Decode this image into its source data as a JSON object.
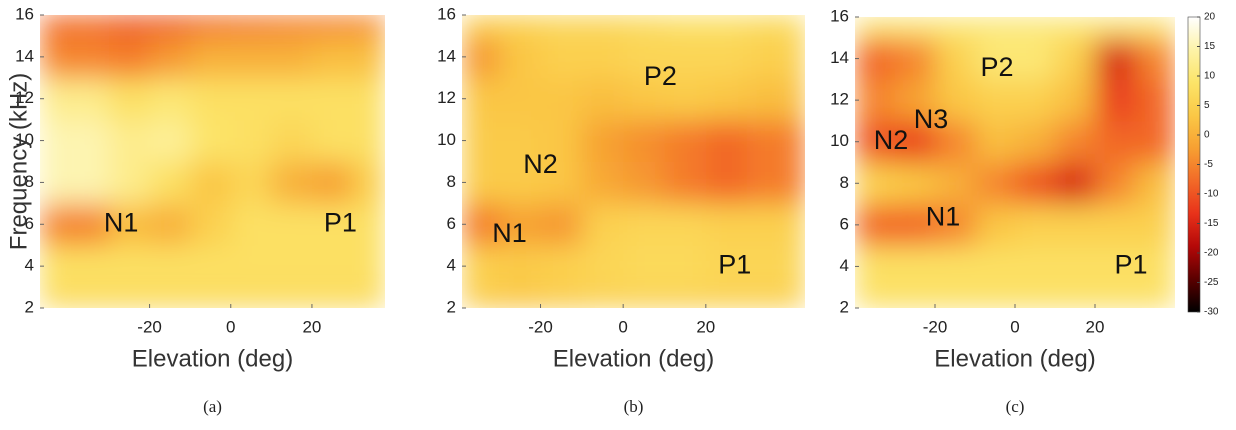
{
  "chart_data": [
    {
      "type": "heatmap",
      "caption": "(a)",
      "xlabel": "Elevation (deg)",
      "ylabel": "Frequency (kHz)",
      "xlim": [
        -47,
        38
      ],
      "ylim": [
        2,
        16
      ],
      "xticks": [
        -20,
        0,
        20
      ],
      "yticks": [
        2,
        4,
        6,
        8,
        10,
        12,
        14,
        16
      ],
      "x": [
        -35,
        -25,
        -15,
        -5,
        5,
        15,
        25,
        35
      ],
      "y": [
        2,
        4,
        6,
        8,
        10,
        12,
        14,
        16
      ],
      "clim": [
        -30,
        20
      ],
      "colormap": [
        "#000000",
        "#5a0000",
        "#b40808",
        "#e8321a",
        "#f26a28",
        "#f7a032",
        "#fac846",
        "#fce468",
        "#fdf3a8",
        "#ffffff"
      ],
      "z": [
        [
          7,
          7,
          7,
          7,
          7,
          7,
          7,
          7
        ],
        [
          8,
          8,
          8,
          8,
          8,
          8,
          8,
          8
        ],
        [
          -5,
          2,
          0,
          5,
          8,
          8,
          8,
          8
        ],
        [
          15,
          12,
          8,
          3,
          6,
          0,
          -2,
          5
        ],
        [
          15,
          12,
          13,
          9,
          8,
          6,
          8,
          8
        ],
        [
          12,
          8,
          10,
          8,
          8,
          8,
          8,
          8
        ],
        [
          -5,
          -6,
          -3,
          0,
          0,
          0,
          2,
          2
        ],
        [
          -8,
          -10,
          -10,
          -8,
          -7,
          -6,
          -6,
          -5
        ]
      ],
      "annotations": [
        {
          "text": "N1",
          "x": -27,
          "y": 6
        },
        {
          "text": "P1",
          "x": 27,
          "y": 6
        }
      ]
    },
    {
      "type": "heatmap",
      "caption": "(b)",
      "xlabel": "Elevation (deg)",
      "xlim": [
        -39,
        44
      ],
      "ylim": [
        2,
        16
      ],
      "xticks": [
        -20,
        0,
        20
      ],
      "yticks": [
        2,
        4,
        6,
        8,
        10,
        12,
        14,
        16
      ],
      "x": [
        -35,
        -25,
        -15,
        -5,
        5,
        15,
        25,
        35
      ],
      "y": [
        2,
        4,
        6,
        8,
        10,
        12,
        14,
        16
      ],
      "clim": [
        -30,
        20
      ],
      "colormap": [
        "#000000",
        "#5a0000",
        "#b40808",
        "#e8321a",
        "#f26a28",
        "#f7a032",
        "#fac846",
        "#fce468",
        "#fdf3a8",
        "#ffffff"
      ],
      "z": [
        [
          4,
          3,
          4,
          5,
          5,
          5,
          5,
          5
        ],
        [
          5,
          4,
          5,
          6,
          7,
          7,
          6,
          6
        ],
        [
          -6,
          -2,
          -3,
          5,
          6,
          6,
          5,
          5
        ],
        [
          4,
          4,
          3,
          -1,
          -3,
          -6,
          -8,
          -6
        ],
        [
          4,
          4,
          3,
          -2,
          -4,
          -6,
          -8,
          -6
        ],
        [
          3,
          3,
          3,
          2,
          3,
          4,
          3,
          2
        ],
        [
          -3,
          3,
          5,
          5,
          6,
          6,
          6,
          5
        ],
        [
          5,
          5,
          6,
          6,
          7,
          8,
          8,
          7
        ]
      ],
      "annotations": [
        {
          "text": "N1",
          "x": -27.5,
          "y": 5.5
        },
        {
          "text": "N2",
          "x": -20,
          "y": 8.8
        },
        {
          "text": "P2",
          "x": 9,
          "y": 13
        },
        {
          "text": "P1",
          "x": 27,
          "y": 4
        }
      ]
    },
    {
      "type": "heatmap",
      "caption": "(c)",
      "xlabel": "Elevation (deg)",
      "xlim": [
        -40,
        40
      ],
      "ylim": [
        2,
        16
      ],
      "xticks": [
        -20,
        0,
        20
      ],
      "yticks": [
        2,
        4,
        6,
        8,
        10,
        12,
        14,
        16
      ],
      "x": [
        -35,
        -25,
        -15,
        -5,
        5,
        15,
        25,
        35
      ],
      "y": [
        2,
        4,
        6,
        8,
        10,
        12,
        14,
        16
      ],
      "clim": [
        -30,
        20
      ],
      "colorbar": true,
      "cticks": [
        20,
        15,
        10,
        5,
        0,
        -5,
        -10,
        -15,
        -20,
        -25,
        -30
      ],
      "colormap": [
        "#000000",
        "#5a0000",
        "#b40808",
        "#e8321a",
        "#f26a28",
        "#f7a032",
        "#fac846",
        "#fce468",
        "#fdf3a8",
        "#ffffff"
      ],
      "z": [
        [
          8,
          8,
          8,
          8,
          8,
          8,
          8,
          8
        ],
        [
          8,
          8,
          8,
          8,
          8,
          8,
          8,
          8
        ],
        [
          -8,
          -8,
          -5,
          3,
          5,
          5,
          5,
          5
        ],
        [
          5,
          3,
          0,
          -5,
          -10,
          -15,
          -5,
          2
        ],
        [
          -10,
          -12,
          -5,
          2,
          0,
          -5,
          -8,
          -8
        ],
        [
          -5,
          -2,
          3,
          5,
          5,
          2,
          -12,
          -8
        ],
        [
          -8,
          -5,
          5,
          10,
          10,
          5,
          -15,
          -5
        ],
        [
          10,
          10,
          10,
          10,
          10,
          10,
          10,
          10
        ]
      ],
      "annotations": [
        {
          "text": "P2",
          "x": -4.5,
          "y": 13.5
        },
        {
          "text": "N3",
          "x": -21,
          "y": 11
        },
        {
          "text": "N2",
          "x": -31,
          "y": 10
        },
        {
          "text": "N1",
          "x": -18,
          "y": 6.3
        },
        {
          "text": "P1",
          "x": 29,
          "y": 4
        }
      ]
    }
  ]
}
